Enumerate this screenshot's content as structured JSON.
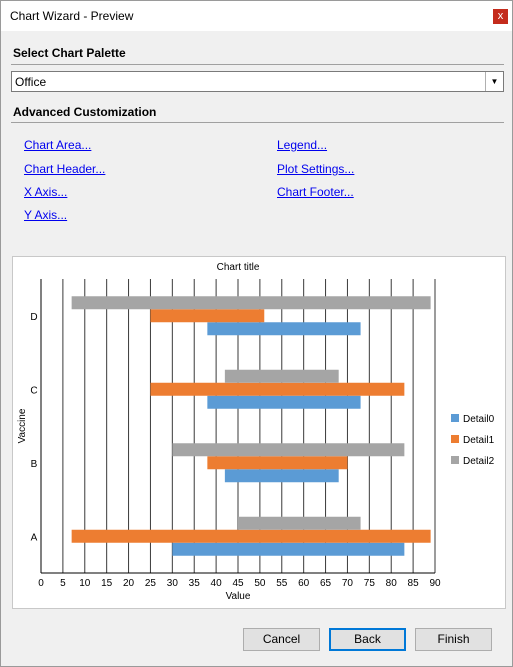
{
  "window": {
    "title": "Chart Wizard - Preview",
    "close_glyph": "x"
  },
  "palette": {
    "heading": "Select Chart Palette",
    "selected": "Office"
  },
  "customization": {
    "heading": "Advanced Customization",
    "links": {
      "chart_area": "Chart Area...",
      "chart_header": "Chart Header...",
      "x_axis": "X Axis...",
      "y_axis": "Y Axis...",
      "legend": "Legend...",
      "plot_settings": "Plot Settings...",
      "chart_footer": "Chart Footer..."
    }
  },
  "chart_data": {
    "type": "bar",
    "orientation": "horizontal",
    "subtype": "floating-range",
    "title": "Chart title",
    "xlabel": "Value",
    "ylabel": "Vaccine",
    "xlim": [
      0,
      90
    ],
    "x_ticks": [
      0,
      5,
      10,
      15,
      20,
      25,
      30,
      35,
      40,
      45,
      50,
      55,
      60,
      65,
      70,
      75,
      80,
      85,
      90
    ],
    "categories": [
      "A",
      "B",
      "C",
      "D"
    ],
    "legend_position": "right",
    "grid": "vertical",
    "series": [
      {
        "name": "Detail0",
        "color": "#5b9bd5",
        "ranges": [
          [
            30,
            83
          ],
          [
            42,
            68
          ],
          [
            38,
            73
          ],
          [
            38,
            73
          ]
        ]
      },
      {
        "name": "Detail1",
        "color": "#ed7d31",
        "ranges": [
          [
            7,
            89
          ],
          [
            38,
            70
          ],
          [
            25,
            83
          ],
          [
            25,
            51
          ]
        ]
      },
      {
        "name": "Detail2",
        "color": "#a5a5a5",
        "ranges": [
          [
            45,
            73
          ],
          [
            30,
            83
          ],
          [
            42,
            68
          ],
          [
            7,
            89
          ]
        ]
      }
    ]
  },
  "buttons": {
    "cancel": "Cancel",
    "back": "Back",
    "finish": "Finish"
  }
}
